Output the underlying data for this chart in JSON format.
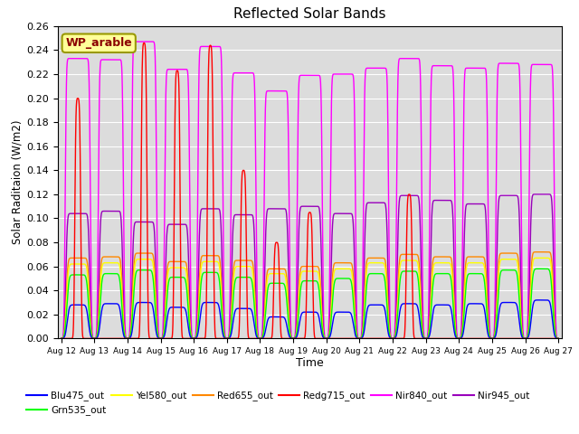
{
  "title": "Reflected Solar Bands",
  "xlabel": "Time",
  "ylabel": "Solar Raditaion (W/m2)",
  "annotation": "WP_arable",
  "annotation_color": "#8B0000",
  "annotation_bg": "#FFFF99",
  "annotation_border": "#999900",
  "ylim": [
    0.0,
    0.26
  ],
  "yticks": [
    0.0,
    0.02,
    0.04,
    0.06,
    0.08,
    0.1,
    0.12,
    0.14,
    0.16,
    0.18,
    0.2,
    0.22,
    0.24,
    0.26
  ],
  "x_date_labels": [
    "Aug 12",
    "Aug 13",
    "Aug 14",
    "Aug 15",
    "Aug 16",
    "Aug 17",
    "Aug 18",
    "Aug 19",
    "Aug 20",
    "Aug 21",
    "Aug 22",
    "Aug 23",
    "Aug 24",
    "Aug 25",
    "Aug 26",
    "Aug 27"
  ],
  "num_days": 15,
  "background_color": "#DCDCDC",
  "fig_bg": "#FFFFFF",
  "nir840_peaks": [
    0.233,
    0.232,
    0.247,
    0.224,
    0.243,
    0.221,
    0.206,
    0.219,
    0.22,
    0.225,
    0.233,
    0.227,
    0.225,
    0.229,
    0.228
  ],
  "nir945_peaks": [
    0.104,
    0.106,
    0.097,
    0.095,
    0.108,
    0.103,
    0.108,
    0.11,
    0.104,
    0.113,
    0.119,
    0.115,
    0.112,
    0.119,
    0.12
  ],
  "red655_peaks": [
    0.067,
    0.068,
    0.071,
    0.064,
    0.069,
    0.065,
    0.058,
    0.06,
    0.063,
    0.067,
    0.07,
    0.068,
    0.068,
    0.071,
    0.072
  ],
  "yel580_peaks": [
    0.062,
    0.063,
    0.066,
    0.059,
    0.064,
    0.06,
    0.054,
    0.056,
    0.058,
    0.063,
    0.065,
    0.063,
    0.063,
    0.066,
    0.067
  ],
  "grn535_peaks": [
    0.053,
    0.054,
    0.057,
    0.051,
    0.055,
    0.051,
    0.046,
    0.048,
    0.05,
    0.054,
    0.056,
    0.054,
    0.054,
    0.057,
    0.058
  ],
  "blu475_peaks": [
    0.028,
    0.029,
    0.03,
    0.026,
    0.03,
    0.025,
    0.018,
    0.022,
    0.022,
    0.028,
    0.029,
    0.028,
    0.029,
    0.03,
    0.032
  ],
  "redg715_peaks": [
    0.2,
    0.0,
    0.246,
    0.223,
    0.244,
    0.14,
    0.08,
    0.105,
    0.0,
    0.0,
    0.12,
    0.0,
    0.0,
    0.0,
    0.0
  ],
  "series_colors": {
    "Blu475_out": "#0000FF",
    "Grn535_out": "#00FF00",
    "Yel580_out": "#FFFF00",
    "Red655_out": "#FF8800",
    "Redg715_out": "#FF0000",
    "Nir840_out": "#FF00FF",
    "Nir945_out": "#9900BB"
  }
}
